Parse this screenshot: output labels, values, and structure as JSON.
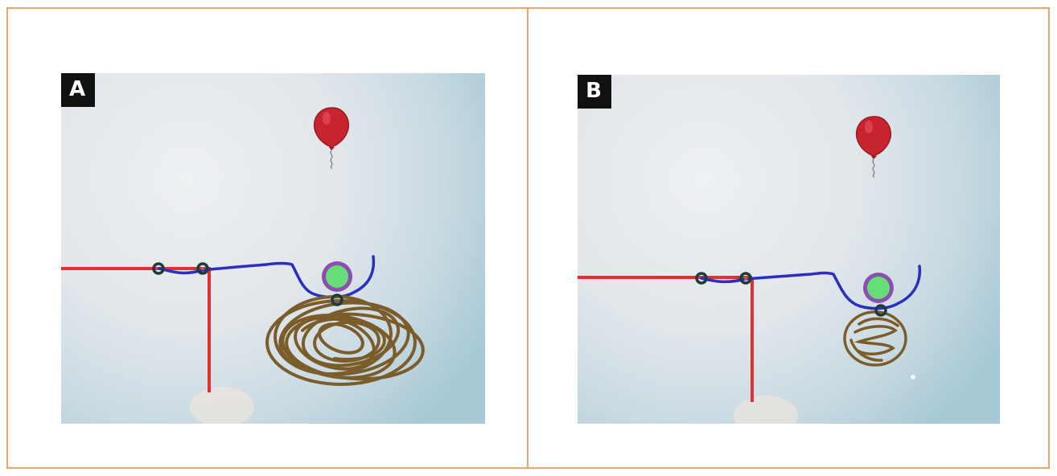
{
  "panels": [
    {
      "label": "A"
    },
    {
      "label": "B"
    }
  ],
  "colors": {
    "frame_border": "#e8a56d",
    "support_line": "#e03030",
    "drawn_curve": "#2a2fc0",
    "ball_fill": "#66dd77",
    "ball_ring": "#8a4fb0",
    "scribble": "#7a5d2a",
    "balloon": "#c8242f",
    "pivot": "#1f3a3a"
  }
}
